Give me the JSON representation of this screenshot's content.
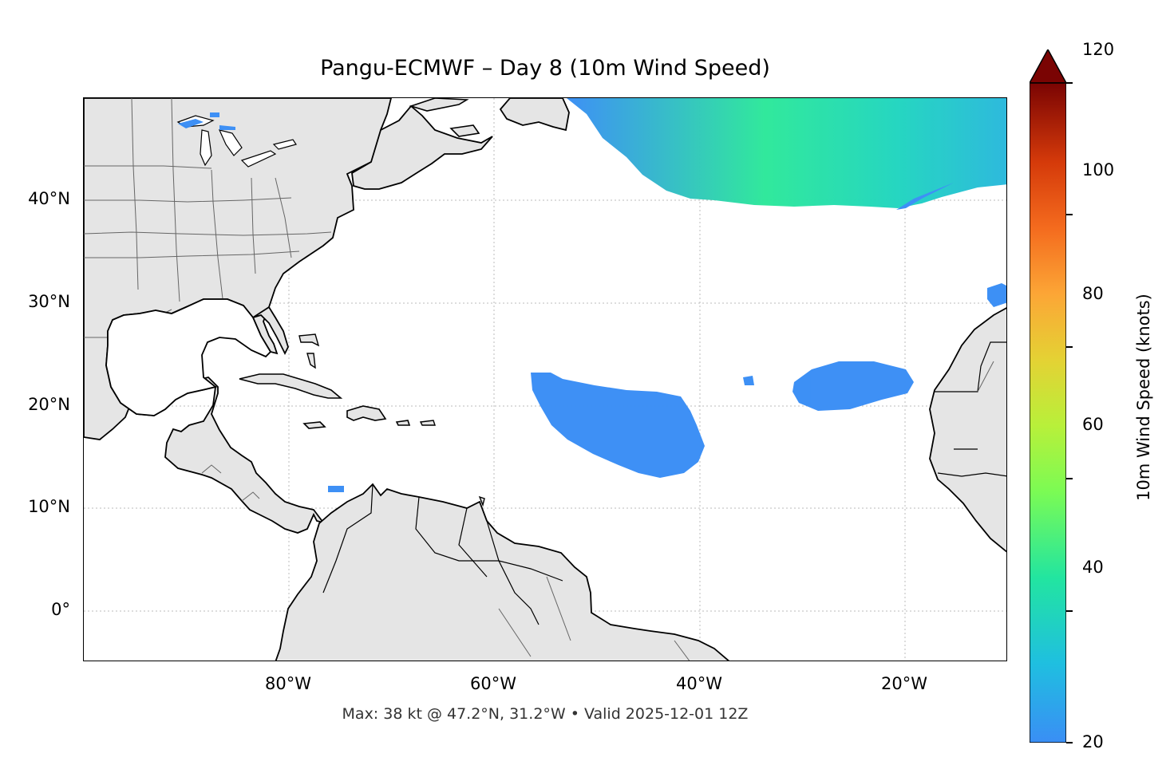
{
  "map": {
    "title": "Pangu-ECMWF – Day 8 (10m Wind Speed)",
    "subtitle": "Max: 38 kt @ 47.2°N, 31.2°W • Valid 2025-12-01 12Z",
    "lat_labels": [
      "40°N",
      "30°N",
      "20°N",
      "10°N",
      "0°"
    ],
    "lon_labels": [
      "80°W",
      "60°W",
      "40°W",
      "20°W"
    ],
    "extent": {
      "lon_min": -100,
      "lon_max": -10,
      "lat_min": -5,
      "lat_max": 50
    },
    "colors": {
      "land": "#e5e5e5",
      "ocean": "#ffffff",
      "coast": "#000000",
      "borders": "#666666",
      "grid": "#bbbbbb"
    },
    "max_wind": {
      "value_kt": 38,
      "lat": 47.2,
      "lon": -31.2
    }
  },
  "colorbar": {
    "label": "10m Wind Speed (knots)",
    "min": 20,
    "max": 120,
    "ticks": [
      "120",
      "100",
      "80",
      "60",
      "40",
      "20"
    ],
    "colormap": "turbo",
    "extend": "max"
  }
}
